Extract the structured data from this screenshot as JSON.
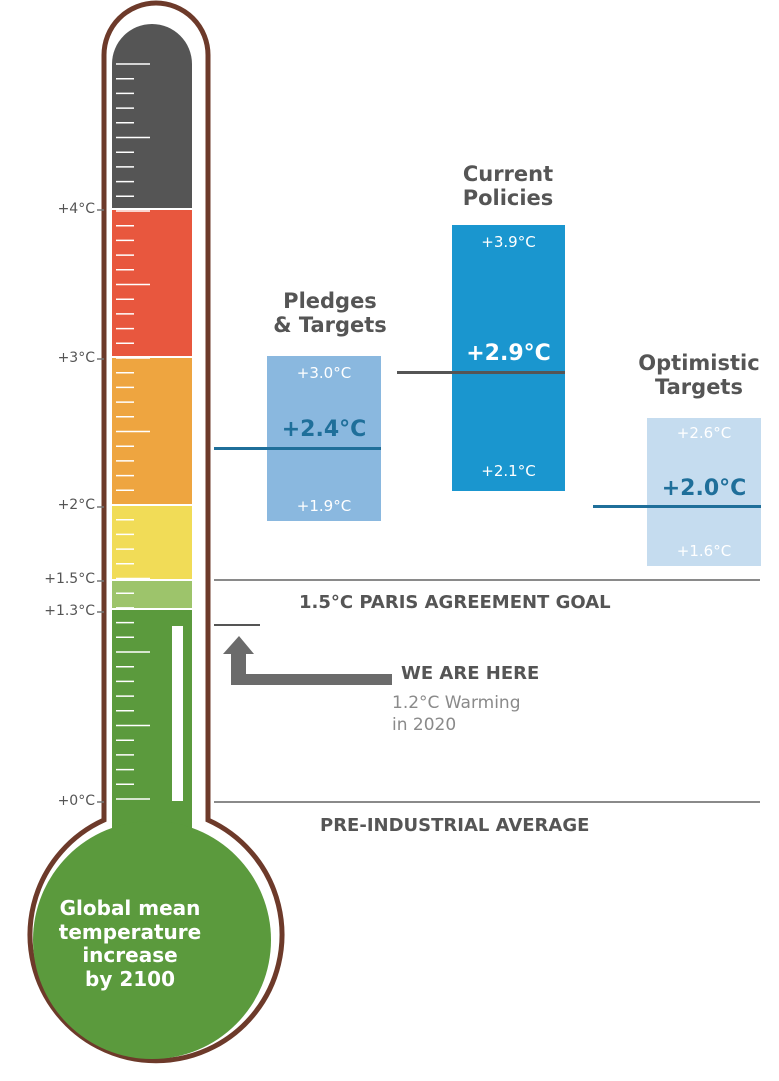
{
  "colors": {
    "segments": [
      "#555555",
      "#e8573e",
      "#eea540",
      "#f1dc57",
      "#9dc46b",
      "#5b9a3d"
    ],
    "pledges": "#8ab8df",
    "current": "#1a96cf",
    "optimistic": "#c5dcef",
    "marker_line": "#1f6f9a",
    "outline": "#6d3a2a"
  },
  "scale": {
    "ticks": [
      {
        "label": "+4°C",
        "value": 4
      },
      {
        "label": "+3°C",
        "value": 3
      },
      {
        "label": "+2°C",
        "value": 2
      },
      {
        "label": "+1.5°C",
        "value": 1.5
      },
      {
        "label": "+1.3°C",
        "value": 1.3
      },
      {
        "label": "+0°C",
        "value": 0
      }
    ]
  },
  "thermometer": {
    "bulb_text": [
      "Global mean",
      "temperature",
      "increase",
      "by 2100"
    ],
    "current_warming": 1.2
  },
  "reference_lines": {
    "paris": {
      "label": "1.5°C PARIS AGREEMENT GOAL",
      "value": 1.5
    },
    "preindustrial": {
      "label": "PRE-INDUSTRIAL AVERAGE",
      "value": 0
    }
  },
  "annotation": {
    "title": "WE ARE HERE",
    "line1": "1.2°C Warming",
    "line2": "in 2020"
  },
  "scenarios": [
    {
      "title": [
        "Pledges",
        "& Targets"
      ],
      "high": "+3.0°C",
      "mid": "+2.4°C",
      "low": "+1.9°C",
      "color_key": "pledges",
      "high_value": 3.0,
      "mid_value": 2.4,
      "low_value": 1.9
    },
    {
      "title": [
        "Current",
        "Policies"
      ],
      "high": "+3.9°C",
      "mid": "+2.9°C",
      "low": "+2.1°C",
      "color_key": "current",
      "high_value": 3.9,
      "mid_value": 2.9,
      "low_value": 2.1
    },
    {
      "title": [
        "Optimistic",
        "Targets"
      ],
      "high": "+2.6°C",
      "mid": "+2.0°C",
      "low": "+1.6°C",
      "color_key": "optimistic",
      "high_value": 2.6,
      "mid_value": 2.0,
      "low_value": 1.6
    }
  ]
}
